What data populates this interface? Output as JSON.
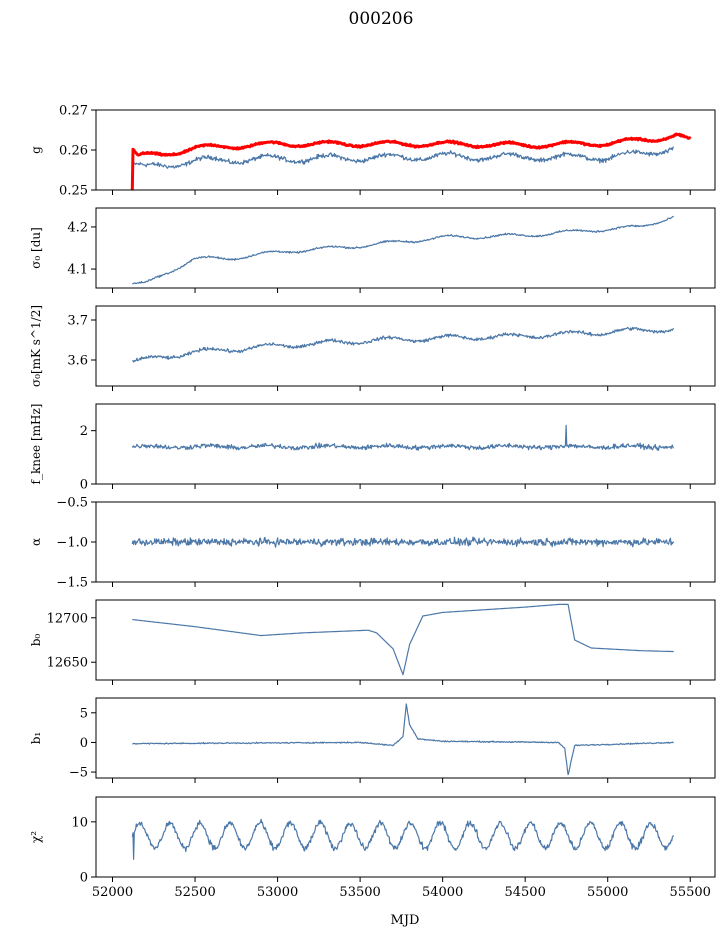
{
  "figure": {
    "title": "000206",
    "xlabel": "MJD",
    "colors": {
      "model": "#4c78a8",
      "measured": "#ff0000",
      "axes": "#000000"
    }
  },
  "chart_data": [
    {
      "type": "line",
      "panel": "g",
      "ylabel": "g",
      "xlim": [
        51900,
        55650
      ],
      "ylim": [
        0.25,
        0.27
      ],
      "yticks": [
        0.25,
        0.26,
        0.27
      ],
      "ytick_labels": [
        "0.25",
        "0.26",
        "0.27"
      ],
      "series": [
        {
          "color": "#4c78a8",
          "x_range": [
            52120,
            55400
          ],
          "anchors": [
            [
              52120,
              0.2565
            ],
            [
              52200,
              0.2555
            ],
            [
              52500,
              0.2573
            ],
            [
              53000,
              0.2578
            ],
            [
              53500,
              0.258
            ],
            [
              54000,
              0.2584
            ],
            [
              54500,
              0.2582
            ],
            [
              55000,
              0.2582
            ],
            [
              55200,
              0.259
            ],
            [
              55400,
              0.2605
            ]
          ],
          "noise": 0.0008,
          "seasonal_amp": 0.0008,
          "seasonal_period": 365
        },
        {
          "color": "#ff0000",
          "x_range": [
            52120,
            55500
          ],
          "anchors": [
            [
              52120,
              0.2605
            ],
            [
              52150,
              0.2585
            ],
            [
              52300,
              0.2588
            ],
            [
              52500,
              0.2605
            ],
            [
              53000,
              0.2615
            ],
            [
              53500,
              0.2615
            ],
            [
              54000,
              0.2615
            ],
            [
              54500,
              0.2612
            ],
            [
              55000,
              0.2617
            ],
            [
              55300,
              0.2628
            ],
            [
              55420,
              0.2638
            ],
            [
              55500,
              0.2622
            ]
          ],
          "noise": 0.0003,
          "seasonal_amp": 0.0006,
          "seasonal_period": 365,
          "spike": {
            "x": 52120,
            "y": 0.25
          }
        }
      ]
    },
    {
      "type": "line",
      "panel": "sigma0_du",
      "ylabel": "σ₀ [du]",
      "xlim": [
        51900,
        55650
      ],
      "ylim": [
        4.055,
        4.245
      ],
      "yticks": [
        4.1,
        4.2
      ],
      "ytick_labels": [
        "4.1",
        "4.2"
      ],
      "series": [
        {
          "color": "#4c78a8",
          "x_range": [
            52120,
            55400
          ],
          "anchors": [
            [
              52120,
              4.065
            ],
            [
              52200,
              4.065
            ],
            [
              52500,
              4.125
            ],
            [
              52700,
              4.125
            ],
            [
              53000,
              4.14
            ],
            [
              53500,
              4.155
            ],
            [
              54000,
              4.175
            ],
            [
              54500,
              4.18
            ],
            [
              55000,
              4.195
            ],
            [
              55200,
              4.2
            ],
            [
              55400,
              4.225
            ]
          ],
          "noise": 0.003,
          "seasonal_amp": 0.004,
          "seasonal_period": 365
        }
      ]
    },
    {
      "type": "line",
      "panel": "sigma0_mK",
      "ylabel": "σ₀[mK s^1/2]",
      "xlim": [
        51900,
        55650
      ],
      "ylim": [
        3.535,
        3.735
      ],
      "yticks": [
        3.6,
        3.7
      ],
      "ytick_labels": [
        "3.6",
        "3.7"
      ],
      "series": [
        {
          "color": "#4c78a8",
          "x_range": [
            52120,
            55400
          ],
          "anchors": [
            [
              52120,
              3.595
            ],
            [
              52500,
              3.62
            ],
            [
              53000,
              3.635
            ],
            [
              53500,
              3.648
            ],
            [
              54000,
              3.655
            ],
            [
              54500,
              3.66
            ],
            [
              55000,
              3.67
            ],
            [
              55400,
              3.678
            ]
          ],
          "noise": 0.006,
          "seasonal_amp": 0.006,
          "seasonal_period": 365
        }
      ]
    },
    {
      "type": "line",
      "panel": "fknee",
      "ylabel": "f_knee [mHz]",
      "xlim": [
        51900,
        55650
      ],
      "ylim": [
        0,
        3
      ],
      "yticks": [
        0,
        2
      ],
      "ytick_labels": [
        "0",
        "2"
      ],
      "series": [
        {
          "color": "#4c78a8",
          "x_range": [
            52120,
            55400
          ],
          "anchors": [
            [
              52120,
              1.4
            ],
            [
              55400,
              1.4
            ]
          ],
          "noise": 0.13,
          "seasonal_amp": 0.04,
          "seasonal_period": 365,
          "spike": {
            "x": 54750,
            "y": 2.2
          }
        }
      ]
    },
    {
      "type": "line",
      "panel": "alpha",
      "ylabel": "α",
      "xlim": [
        51900,
        55650
      ],
      "ylim": [
        -1.5,
        -0.5
      ],
      "yticks": [
        -1.5,
        -1.0,
        -0.5
      ],
      "ytick_labels": [
        "−1.5",
        "−1.0",
        "−0.5"
      ],
      "series": [
        {
          "color": "#4c78a8",
          "x_range": [
            52120,
            55400
          ],
          "anchors": [
            [
              52120,
              -1.0
            ],
            [
              55400,
              -1.0
            ]
          ],
          "noise": 0.07,
          "seasonal_amp": 0.0,
          "seasonal_period": 365
        }
      ]
    },
    {
      "type": "line",
      "panel": "b0",
      "ylabel": "b₀",
      "xlim": [
        51900,
        55650
      ],
      "ylim": [
        12630,
        12720
      ],
      "yticks": [
        12650,
        12700
      ],
      "ytick_labels": [
        "12650",
        "12700"
      ],
      "series": [
        {
          "color": "#4c78a8",
          "x_range": [
            52120,
            55400
          ],
          "anchors": [
            [
              52120,
              12698
            ],
            [
              52500,
              12690
            ],
            [
              52900,
              12680
            ],
            [
              53150,
              12683
            ],
            [
              53550,
              12686
            ],
            [
              53600,
              12683
            ],
            [
              53700,
              12665
            ],
            [
              53760,
              12636
            ],
            [
              53800,
              12670
            ],
            [
              53880,
              12702
            ],
            [
              54000,
              12706
            ],
            [
              54500,
              12712
            ],
            [
              54700,
              12715
            ],
            [
              54760,
              12715
            ],
            [
              54800,
              12675
            ],
            [
              54900,
              12666
            ],
            [
              55200,
              12663
            ],
            [
              55400,
              12662
            ]
          ],
          "noise": 0.0,
          "seasonal_amp": 0.0,
          "seasonal_period": 365
        }
      ]
    },
    {
      "type": "line",
      "panel": "b1",
      "ylabel": "b₁",
      "xlim": [
        51900,
        55650
      ],
      "ylim": [
        -6,
        7.5
      ],
      "yticks": [
        -5,
        0,
        5
      ],
      "ytick_labels": [
        "−5",
        "0",
        "5"
      ],
      "series": [
        {
          "color": "#4c78a8",
          "x_range": [
            52120,
            55400
          ],
          "anchors": [
            [
              52120,
              -0.2
            ],
            [
              53500,
              0.0
            ],
            [
              53700,
              -0.5
            ],
            [
              53760,
              1.0
            ],
            [
              53780,
              6.5
            ],
            [
              53800,
              3.0
            ],
            [
              53850,
              0.6
            ],
            [
              54000,
              0.2
            ],
            [
              54700,
              0.0
            ],
            [
              54740,
              -1.0
            ],
            [
              54760,
              -5.5
            ],
            [
              54800,
              -0.5
            ],
            [
              55400,
              0.0
            ]
          ],
          "noise": 0.15,
          "seasonal_amp": 0.0,
          "seasonal_period": 365
        }
      ]
    },
    {
      "type": "line",
      "panel": "chi2",
      "ylabel": "χ²",
      "xlim": [
        51900,
        55650
      ],
      "ylim": [
        0,
        14.5
      ],
      "yticks": [
        0,
        10
      ],
      "ytick_labels": [
        "0",
        "10"
      ],
      "series": [
        {
          "color": "#4c78a8",
          "x_range": [
            52120,
            55400
          ],
          "anchors": [
            [
              52120,
              7.5
            ],
            [
              55400,
              7.5
            ]
          ],
          "noise": 0.8,
          "seasonal_amp": 2.3,
          "seasonal_period": 182,
          "spike": {
            "x": 52130,
            "y": 3.2
          }
        }
      ]
    }
  ],
  "x_axis": {
    "ticks": [
      52000,
      52500,
      53000,
      53500,
      54000,
      54500,
      55000,
      55500
    ],
    "tick_labels": [
      "52000",
      "52500",
      "53000",
      "53500",
      "54000",
      "54500",
      "55000",
      "55500"
    ]
  }
}
